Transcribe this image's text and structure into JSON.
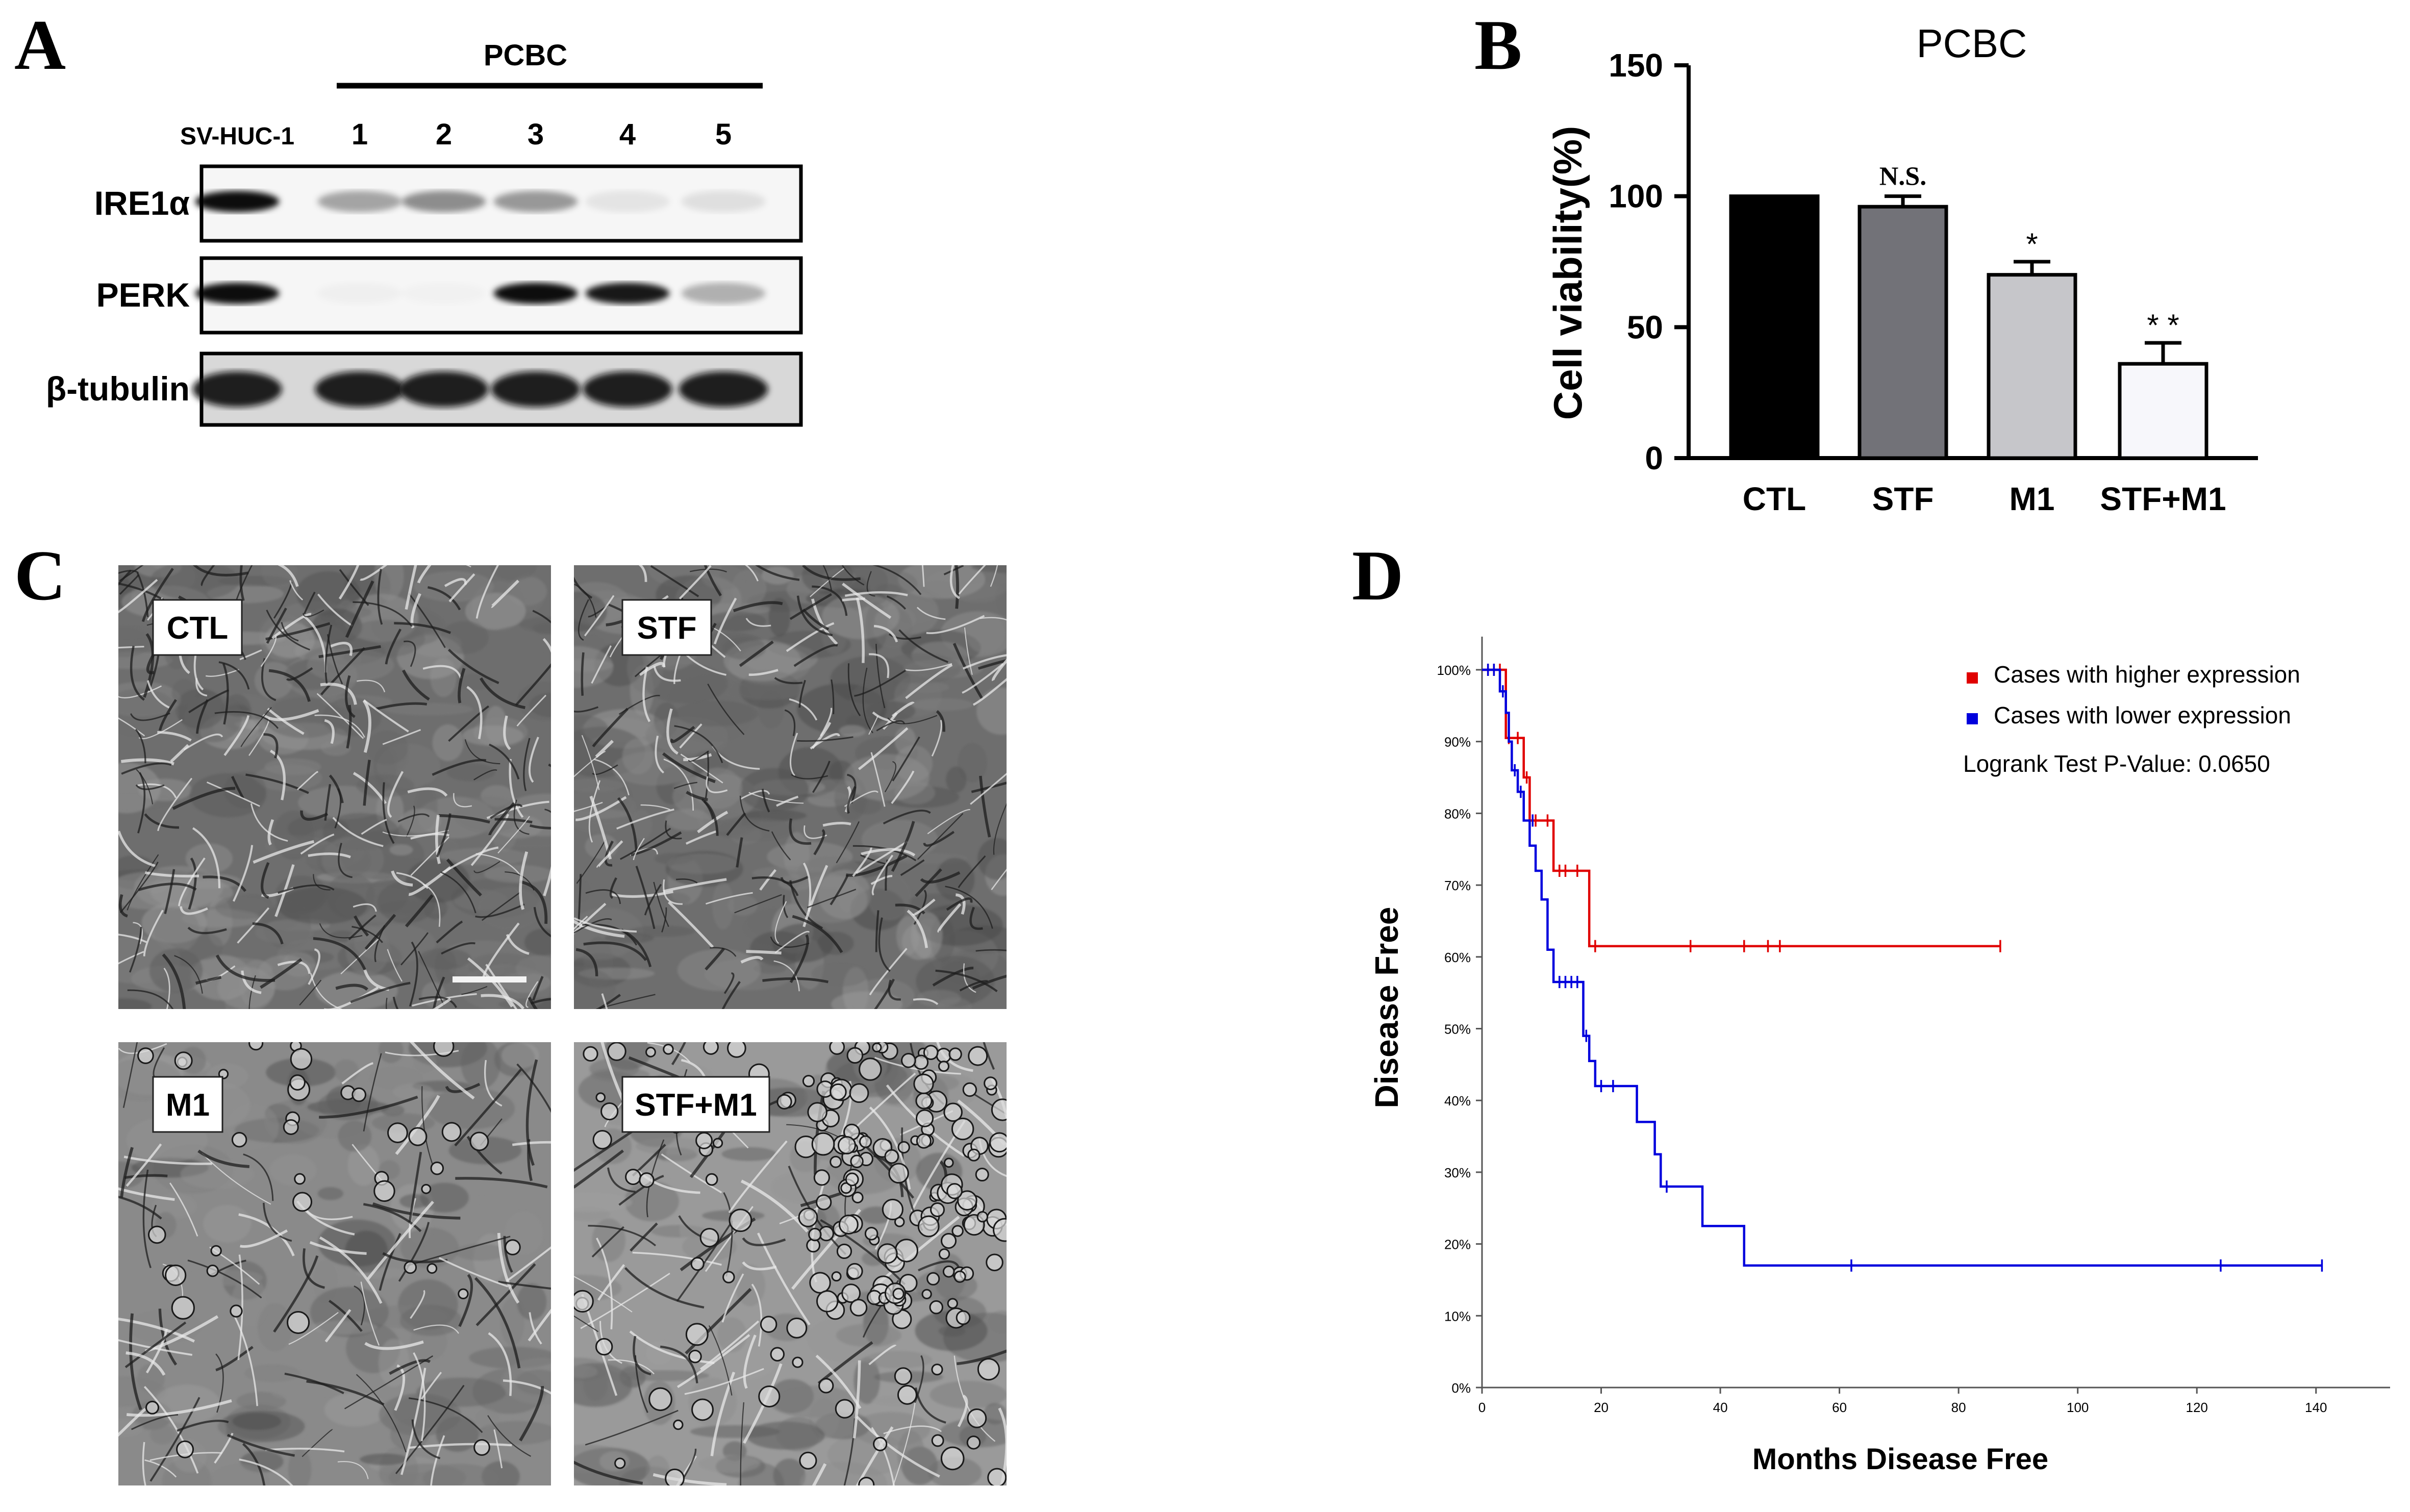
{
  "panel_letters": [
    "A",
    "B",
    "C",
    "D"
  ],
  "panel_a": {
    "group_label": "PCBC",
    "lane_labels": [
      "SV-HUC-1",
      "1",
      "2",
      "3",
      "4",
      "5"
    ],
    "row_labels": [
      "IRE1α",
      "PERK",
      "β-tubulin"
    ],
    "band_intensity": [
      [
        1.0,
        0.35,
        0.45,
        0.4,
        0.08,
        0.1
      ],
      [
        1.0,
        0.03,
        0.02,
        1.0,
        0.95,
        0.3
      ],
      [
        1.0,
        1.0,
        1.0,
        1.0,
        1.0,
        1.0
      ]
    ]
  },
  "chart_data": [
    {
      "type": "bar",
      "title": "PCBC",
      "ylabel": "Cell viability(%)",
      "xlabel": "",
      "categories": [
        "CTL",
        "STF",
        "M1",
        "STF+M1"
      ],
      "values": [
        100,
        96,
        70,
        36
      ],
      "errors": [
        0,
        4,
        5,
        8
      ],
      "annotations": [
        "",
        "N.S.",
        "*",
        "* *"
      ],
      "colors": [
        "#000000",
        "#727278",
        "#c6c6ca",
        "#f7f7fb"
      ],
      "ylim": [
        0,
        150
      ],
      "yticks": [
        "0",
        "50",
        "100",
        "150"
      ],
      "grid": false
    },
    {
      "type": "line",
      "title": "",
      "xlabel": "Months Disease Free",
      "ylabel": "Disease Free",
      "xlim": [
        0,
        150
      ],
      "ylim": [
        0,
        100
      ],
      "xticks": [
        "0",
        "20",
        "40",
        "60",
        "80",
        "100",
        "120",
        "140"
      ],
      "yticks": [
        "0%",
        "10%",
        "20%",
        "30%",
        "40%",
        "50%",
        "60%",
        "70%",
        "80%",
        "90%",
        "100%"
      ],
      "legend_position": "top-right",
      "annotation": "Logrank Test P-Value: 0.0650",
      "series": [
        {
          "name": "Cases with higher expression",
          "color": "#e00000",
          "steps": [
            [
              0,
              100
            ],
            [
              4,
              100
            ],
            [
              4,
              90.5
            ],
            [
              7,
              90.5
            ],
            [
              7,
              85
            ],
            [
              8,
              85
            ],
            [
              8,
              79
            ],
            [
              12,
              79
            ],
            [
              12,
              72
            ],
            [
              18,
              72
            ],
            [
              18,
              61.5
            ],
            [
              87,
              61.5
            ]
          ],
          "censor": [
            [
              1,
              100
            ],
            [
              2,
              100
            ],
            [
              3,
              100
            ],
            [
              4.5,
              90.5
            ],
            [
              6,
              90.5
            ],
            [
              7.5,
              85
            ],
            [
              9,
              79
            ],
            [
              11,
              79
            ],
            [
              13,
              72
            ],
            [
              14,
              72
            ],
            [
              16,
              72
            ],
            [
              19,
              61.5
            ],
            [
              35,
              61.5
            ],
            [
              44,
              61.5
            ],
            [
              48,
              61.5
            ],
            [
              50,
              61.5
            ],
            [
              87,
              61.5
            ]
          ]
        },
        {
          "name": "Cases with lower expression",
          "color": "#0000dd",
          "steps": [
            [
              0,
              100
            ],
            [
              3,
              100
            ],
            [
              3,
              97
            ],
            [
              4,
              97
            ],
            [
              4,
              94
            ],
            [
              4.5,
              94
            ],
            [
              4.5,
              90
            ],
            [
              5,
              90
            ],
            [
              5,
              86
            ],
            [
              6,
              86
            ],
            [
              6,
              83
            ],
            [
              7,
              83
            ],
            [
              7,
              79
            ],
            [
              8,
              79
            ],
            [
              8,
              75.5
            ],
            [
              9,
              75.5
            ],
            [
              9,
              72
            ],
            [
              10,
              72
            ],
            [
              10,
              68
            ],
            [
              11,
              68
            ],
            [
              11,
              61
            ],
            [
              12,
              61
            ],
            [
              12,
              56.5
            ],
            [
              17,
              56.5
            ],
            [
              17,
              49
            ],
            [
              18,
              49
            ],
            [
              18,
              45.5
            ],
            [
              19,
              45.5
            ],
            [
              19,
              42
            ],
            [
              26,
              42
            ],
            [
              26,
              37
            ],
            [
              29,
              37
            ],
            [
              29,
              32.5
            ],
            [
              30,
              32.5
            ],
            [
              30,
              28
            ],
            [
              37,
              28
            ],
            [
              37,
              22.5
            ],
            [
              44,
              22.5
            ],
            [
              44,
              17
            ],
            [
              141,
              17
            ]
          ],
          "censor": [
            [
              1,
              100
            ],
            [
              2,
              100
            ],
            [
              3.5,
              97
            ],
            [
              5.5,
              86
            ],
            [
              6.5,
              83
            ],
            [
              8.5,
              79
            ],
            [
              13,
              56.5
            ],
            [
              14,
              56.5
            ],
            [
              15,
              56.5
            ],
            [
              16,
              56.5
            ],
            [
              17.5,
              49
            ],
            [
              20,
              42
            ],
            [
              22,
              42
            ],
            [
              31,
              28
            ],
            [
              62,
              17
            ],
            [
              124,
              17
            ],
            [
              141,
              17
            ]
          ]
        }
      ]
    }
  ],
  "panel_c": {
    "images": [
      {
        "label": "CTL",
        "seed": 11,
        "style": "dense"
      },
      {
        "label": "STF",
        "seed": 23,
        "style": "dense"
      },
      {
        "label": "M1",
        "seed": 37,
        "style": "sparse"
      },
      {
        "label": "STF+M1",
        "seed": 53,
        "style": "rounded"
      }
    ]
  }
}
